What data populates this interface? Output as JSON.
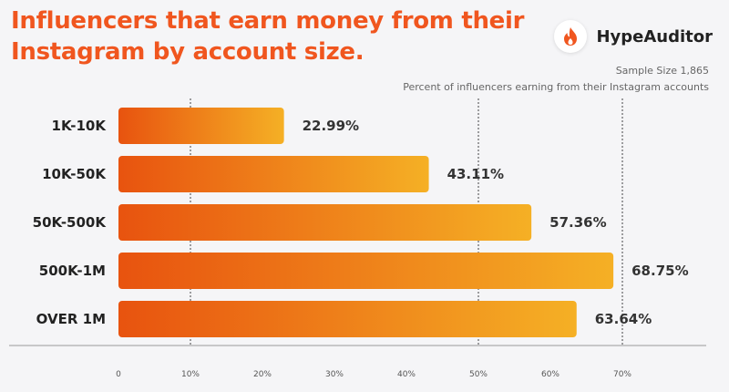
{
  "title": {
    "line1": "Influencers that earn money from their",
    "line2": "Instagram by account size."
  },
  "brand": {
    "name": "HypeAuditor",
    "icon": "flame-icon",
    "icon_color": "#f0561f"
  },
  "sample_size": "Sample Size 1,865",
  "chart_data": {
    "type": "bar",
    "orientation": "horizontal",
    "title": "Influencers that earn money from their Instagram by account size.",
    "subtitle": "Percent of influencers earning from their Instagram accounts",
    "categories": [
      "1K-10K",
      "10K-50K",
      "50K-500K",
      "500K-1M",
      "OVER 1M"
    ],
    "values": [
      22.99,
      43.11,
      57.36,
      68.75,
      63.64
    ],
    "value_labels": [
      "22.99%",
      "43.11%",
      "57.36%",
      "68.75%",
      "63.64%"
    ],
    "xlim": [
      0,
      70
    ],
    "x_ticks": [
      0,
      10,
      20,
      30,
      40,
      50,
      60,
      70
    ],
    "x_tick_labels": [
      "0",
      "10%",
      "20%",
      "30%",
      "40%",
      "50%",
      "60%",
      "70%"
    ],
    "gridlines": [
      10,
      50,
      70
    ],
    "grid": true,
    "legend": "none",
    "colors": {
      "bar_start": "#e8530f",
      "bar_end": "#f5b025"
    }
  }
}
